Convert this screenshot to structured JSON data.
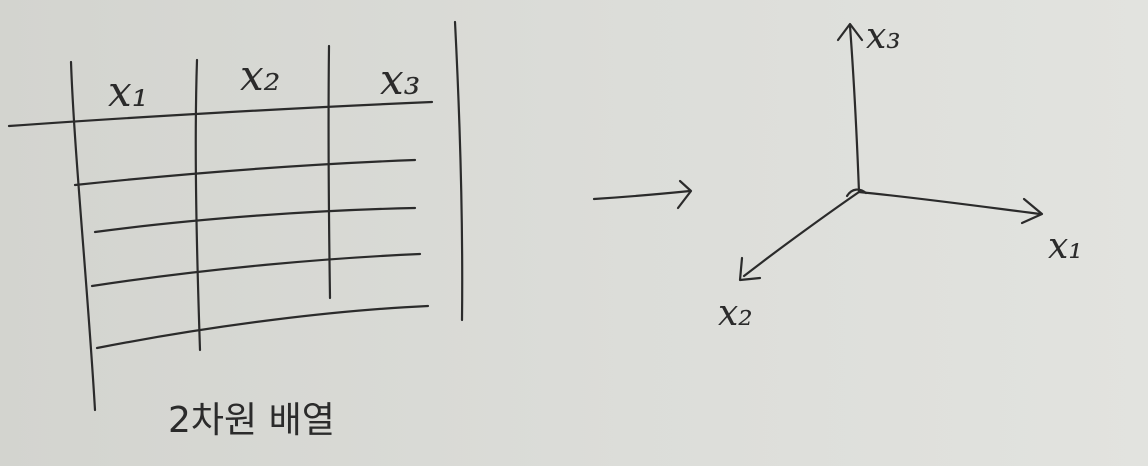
{
  "table": {
    "headers": [
      "x₁",
      "x₂",
      "x₃"
    ],
    "caption": "2차원 배열"
  },
  "axes": {
    "labels": {
      "x1": "x₁",
      "x2": "x₂",
      "x3": "x₃"
    }
  },
  "colors": {
    "paper": "#d9dad6",
    "ink": "#2b2b2b"
  }
}
